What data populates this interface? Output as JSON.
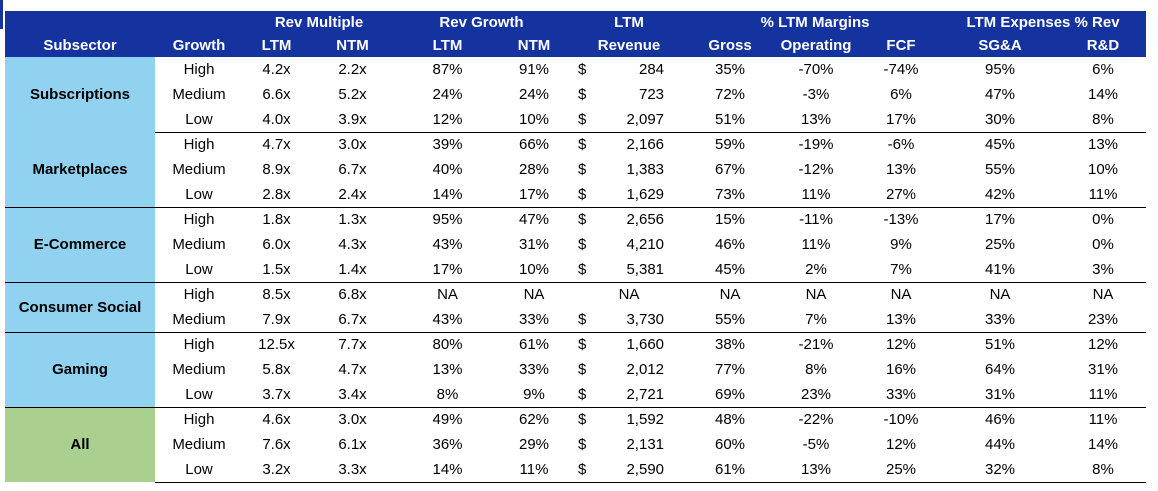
{
  "colors": {
    "header_bg": "#14339F",
    "header_text": "#FFFFFF",
    "subsector_blue": "#90D2F0",
    "all_green": "#A9D08E",
    "body_text": "#000000",
    "separator": "#000000"
  },
  "table": {
    "header": {
      "groups": [
        {
          "label": "Rev Multiple",
          "span": 2
        },
        {
          "label": "Rev Growth",
          "span": 2
        },
        {
          "label": "LTM",
          "span": 1
        },
        {
          "label": "% LTM Margins",
          "span": 3
        },
        {
          "label": "LTM Expenses % Rev",
          "span": 2
        }
      ],
      "columns": [
        "Subsector",
        "Growth",
        "LTM",
        "NTM",
        "LTM",
        "NTM",
        "Revenue",
        "Gross",
        "Operating",
        "FCF",
        "SG&A",
        "R&D"
      ]
    },
    "groups": [
      {
        "name": "Subscriptions",
        "bg": "#90D2F0",
        "rows": [
          {
            "growth": "High",
            "rm_ltm": "4.2x",
            "rm_ntm": "2.2x",
            "rg_ltm": "87%",
            "rg_ntm": "91%",
            "rev_cur": "$",
            "rev_val": "284",
            "gross": "35%",
            "operating": "-70%",
            "fcf": "-74%",
            "sga": "95%",
            "rd": "6%"
          },
          {
            "growth": "Medium",
            "rm_ltm": "6.6x",
            "rm_ntm": "5.2x",
            "rg_ltm": "24%",
            "rg_ntm": "24%",
            "rev_cur": "$",
            "rev_val": "723",
            "gross": "72%",
            "operating": "-3%",
            "fcf": "6%",
            "sga": "47%",
            "rd": "14%"
          },
          {
            "growth": "Low",
            "rm_ltm": "4.0x",
            "rm_ntm": "3.9x",
            "rg_ltm": "12%",
            "rg_ntm": "10%",
            "rev_cur": "$",
            "rev_val": "2,097",
            "gross": "51%",
            "operating": "13%",
            "fcf": "17%",
            "sga": "30%",
            "rd": "8%"
          }
        ]
      },
      {
        "name": "Marketplaces",
        "bg": "#90D2F0",
        "rows": [
          {
            "growth": "High",
            "rm_ltm": "4.7x",
            "rm_ntm": "3.0x",
            "rg_ltm": "39%",
            "rg_ntm": "66%",
            "rev_cur": "$",
            "rev_val": "2,166",
            "gross": "59%",
            "operating": "-19%",
            "fcf": "-6%",
            "sga": "45%",
            "rd": "13%"
          },
          {
            "growth": "Medium",
            "rm_ltm": "8.9x",
            "rm_ntm": "6.7x",
            "rg_ltm": "40%",
            "rg_ntm": "28%",
            "rev_cur": "$",
            "rev_val": "1,383",
            "gross": "67%",
            "operating": "-12%",
            "fcf": "13%",
            "sga": "55%",
            "rd": "10%"
          },
          {
            "growth": "Low",
            "rm_ltm": "2.8x",
            "rm_ntm": "2.4x",
            "rg_ltm": "14%",
            "rg_ntm": "17%",
            "rev_cur": "$",
            "rev_val": "1,629",
            "gross": "73%",
            "operating": "11%",
            "fcf": "27%",
            "sga": "42%",
            "rd": "11%"
          }
        ]
      },
      {
        "name": "E-Commerce",
        "bg": "#90D2F0",
        "rows": [
          {
            "growth": "High",
            "rm_ltm": "1.8x",
            "rm_ntm": "1.3x",
            "rg_ltm": "95%",
            "rg_ntm": "47%",
            "rev_cur": "$",
            "rev_val": "2,656",
            "gross": "15%",
            "operating": "-11%",
            "fcf": "-13%",
            "sga": "17%",
            "rd": "0%"
          },
          {
            "growth": "Medium",
            "rm_ltm": "6.0x",
            "rm_ntm": "4.3x",
            "rg_ltm": "43%",
            "rg_ntm": "31%",
            "rev_cur": "$",
            "rev_val": "4,210",
            "gross": "46%",
            "operating": "11%",
            "fcf": "9%",
            "sga": "25%",
            "rd": "0%"
          },
          {
            "growth": "Low",
            "rm_ltm": "1.5x",
            "rm_ntm": "1.4x",
            "rg_ltm": "17%",
            "rg_ntm": "10%",
            "rev_cur": "$",
            "rev_val": "5,381",
            "gross": "45%",
            "operating": "2%",
            "fcf": "7%",
            "sga": "41%",
            "rd": "3%"
          }
        ]
      },
      {
        "name": "Consumer Social",
        "bg": "#90D2F0",
        "rows": [
          {
            "growth": "High",
            "rm_ltm": "8.5x",
            "rm_ntm": "6.8x",
            "rg_ltm": "NA",
            "rg_ntm": "NA",
            "rev_cur": "",
            "rev_val": "NA",
            "gross": "NA",
            "operating": "NA",
            "fcf": "NA",
            "sga": "NA",
            "rd": "NA"
          },
          {
            "growth": "Medium",
            "rm_ltm": "7.9x",
            "rm_ntm": "6.7x",
            "rg_ltm": "43%",
            "rg_ntm": "33%",
            "rev_cur": "$",
            "rev_val": "3,730",
            "gross": "55%",
            "operating": "7%",
            "fcf": "13%",
            "sga": "33%",
            "rd": "23%"
          }
        ]
      },
      {
        "name": "Gaming",
        "bg": "#90D2F0",
        "rows": [
          {
            "growth": "High",
            "rm_ltm": "12.5x",
            "rm_ntm": "7.7x",
            "rg_ltm": "80%",
            "rg_ntm": "61%",
            "rev_cur": "$",
            "rev_val": "1,660",
            "gross": "38%",
            "operating": "-21%",
            "fcf": "12%",
            "sga": "51%",
            "rd": "12%"
          },
          {
            "growth": "Medium",
            "rm_ltm": "5.8x",
            "rm_ntm": "4.7x",
            "rg_ltm": "13%",
            "rg_ntm": "33%",
            "rev_cur": "$",
            "rev_val": "2,012",
            "gross": "77%",
            "operating": "8%",
            "fcf": "16%",
            "sga": "64%",
            "rd": "31%"
          },
          {
            "growth": "Low",
            "rm_ltm": "3.7x",
            "rm_ntm": "3.4x",
            "rg_ltm": "8%",
            "rg_ntm": "9%",
            "rev_cur": "$",
            "rev_val": "2,721",
            "gross": "69%",
            "operating": "23%",
            "fcf": "33%",
            "sga": "31%",
            "rd": "11%"
          }
        ]
      },
      {
        "name": "All",
        "bg": "#A9D08E",
        "rows": [
          {
            "growth": "High",
            "rm_ltm": "4.6x",
            "rm_ntm": "3.0x",
            "rg_ltm": "49%",
            "rg_ntm": "62%",
            "rev_cur": "$",
            "rev_val": "1,592",
            "gross": "48%",
            "operating": "-22%",
            "fcf": "-10%",
            "sga": "46%",
            "rd": "11%"
          },
          {
            "growth": "Medium",
            "rm_ltm": "7.6x",
            "rm_ntm": "6.1x",
            "rg_ltm": "36%",
            "rg_ntm": "29%",
            "rev_cur": "$",
            "rev_val": "2,131",
            "gross": "60%",
            "operating": "-5%",
            "fcf": "12%",
            "sga": "44%",
            "rd": "14%"
          },
          {
            "growth": "Low",
            "rm_ltm": "3.2x",
            "rm_ntm": "3.3x",
            "rg_ltm": "14%",
            "rg_ntm": "11%",
            "rev_cur": "$",
            "rev_val": "2,590",
            "gross": "61%",
            "operating": "13%",
            "fcf": "25%",
            "sga": "32%",
            "rd": "8%"
          }
        ]
      }
    ]
  }
}
